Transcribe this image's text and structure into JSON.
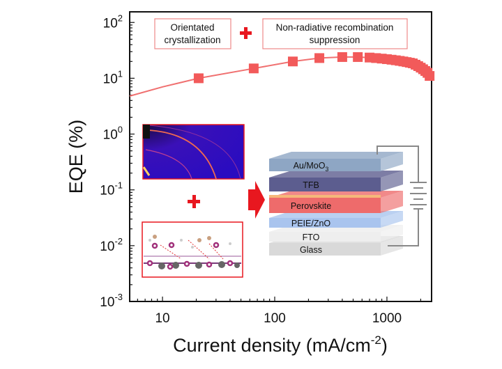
{
  "chart_data": {
    "type": "scatter",
    "title": "",
    "xlabel": "Current density (mA/cm",
    "xlabel_sup": "-2",
    "xlabel_end": ")",
    "ylabel": "EQE (%)",
    "xscale": "log",
    "yscale": "log",
    "xlim": [
      5.1,
      2500
    ],
    "ylim": [
      0.001,
      155
    ],
    "grid": false,
    "x_ticks": [
      {
        "label": "10",
        "value": 10
      },
      {
        "label": "100",
        "value": 100
      },
      {
        "label": "1000",
        "value": 1000
      }
    ],
    "y_ticks": [
      {
        "base": "10",
        "exp": "2",
        "value": 100
      },
      {
        "base": "10",
        "exp": "1",
        "value": 10
      },
      {
        "base": "10",
        "exp": "0",
        "value": 1
      },
      {
        "base": "10",
        "exp": "-1",
        "value": 0.1
      },
      {
        "base": "10",
        "exp": "-2",
        "value": 0.01
      },
      {
        "base": "10",
        "exp": "-3",
        "value": 0.001
      }
    ],
    "series": [
      {
        "marker": "square",
        "color": "#f25a5a",
        "x": [
          21,
          65,
          145,
          250,
          400,
          550,
          700,
          800,
          900,
          1000,
          1100,
          1200,
          1300,
          1400,
          1500,
          1600,
          1700,
          1800,
          1900,
          2000,
          2100,
          2200,
          2300,
          2400
        ],
        "y": [
          10,
          15,
          20,
          23,
          24,
          24,
          23.5,
          23,
          22.5,
          22,
          21.5,
          21,
          20.5,
          20,
          19.5,
          19,
          18.5,
          17.5,
          16.5,
          15.5,
          14.5,
          13.5,
          12.5,
          11
        ]
      }
    ],
    "fit_line": {
      "color": "#f07070",
      "x": [
        5.1,
        10,
        21,
        65,
        145,
        250,
        400,
        550,
        800,
        1000,
        1500,
        2000,
        2400
      ],
      "y": [
        4.8,
        7,
        10,
        15,
        20,
        23,
        24,
        24,
        23,
        22,
        19.5,
        15.5,
        11
      ]
    }
  },
  "annotations": {
    "box1_line1": "Orientated",
    "box1_line2": "crystallization",
    "box2_line1": "Non-radiative recombination",
    "box2_line2": "suppression",
    "accent_color": "#e8171f"
  },
  "device": {
    "layers": [
      {
        "label": "Au/MoO",
        "sub": "3",
        "color": "#8ea6c4"
      },
      {
        "label": "TFB",
        "color": "#5c5d8f"
      },
      {
        "label": "Perovskite",
        "color": "#ee6b6b"
      },
      {
        "label": "PEIE/ZnO",
        "color": "#a9c4ee"
      },
      {
        "label": "FTO",
        "color": "#eeeeee"
      },
      {
        "label": "Glass",
        "color": "#d9d9d9"
      }
    ]
  }
}
